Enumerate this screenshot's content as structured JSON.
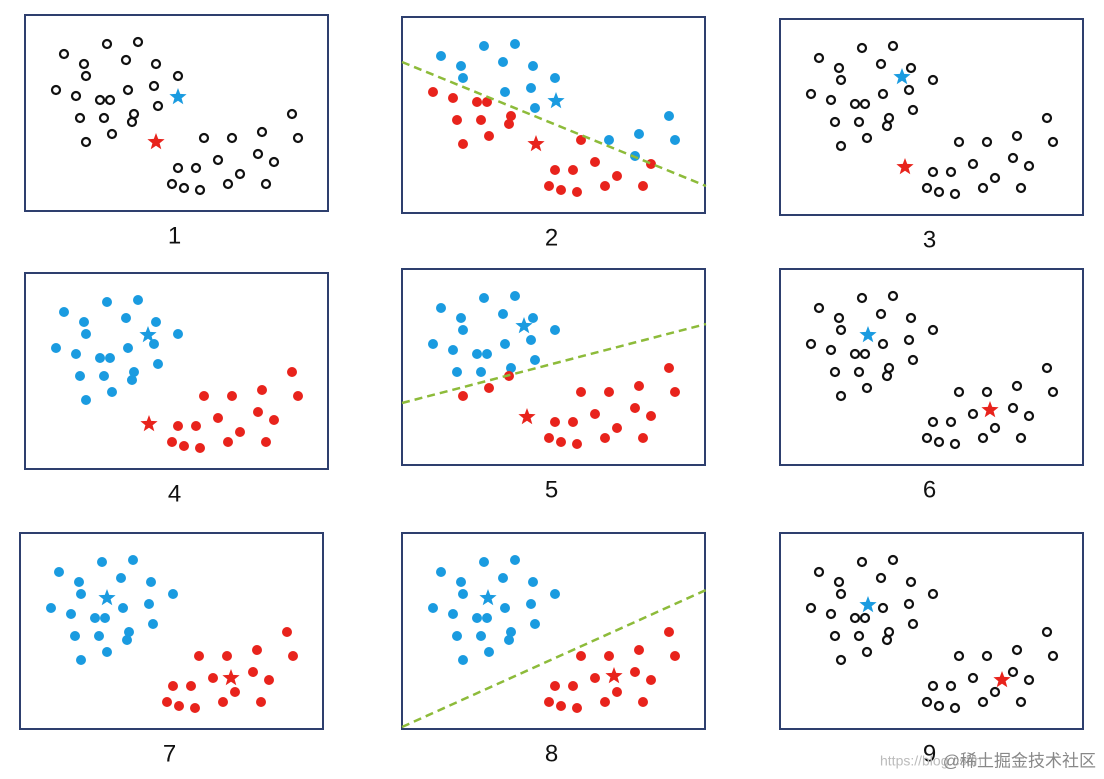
{
  "panels": [
    {
      "label": "1"
    },
    {
      "label": "2"
    },
    {
      "label": "3"
    },
    {
      "label": "4"
    },
    {
      "label": "5"
    },
    {
      "label": "6"
    },
    {
      "label": "7"
    },
    {
      "label": "8"
    },
    {
      "label": "9"
    }
  ],
  "watermark": {
    "url": "https://blog.csdn",
    "brand": "@稀土掘金技术社区"
  }
}
